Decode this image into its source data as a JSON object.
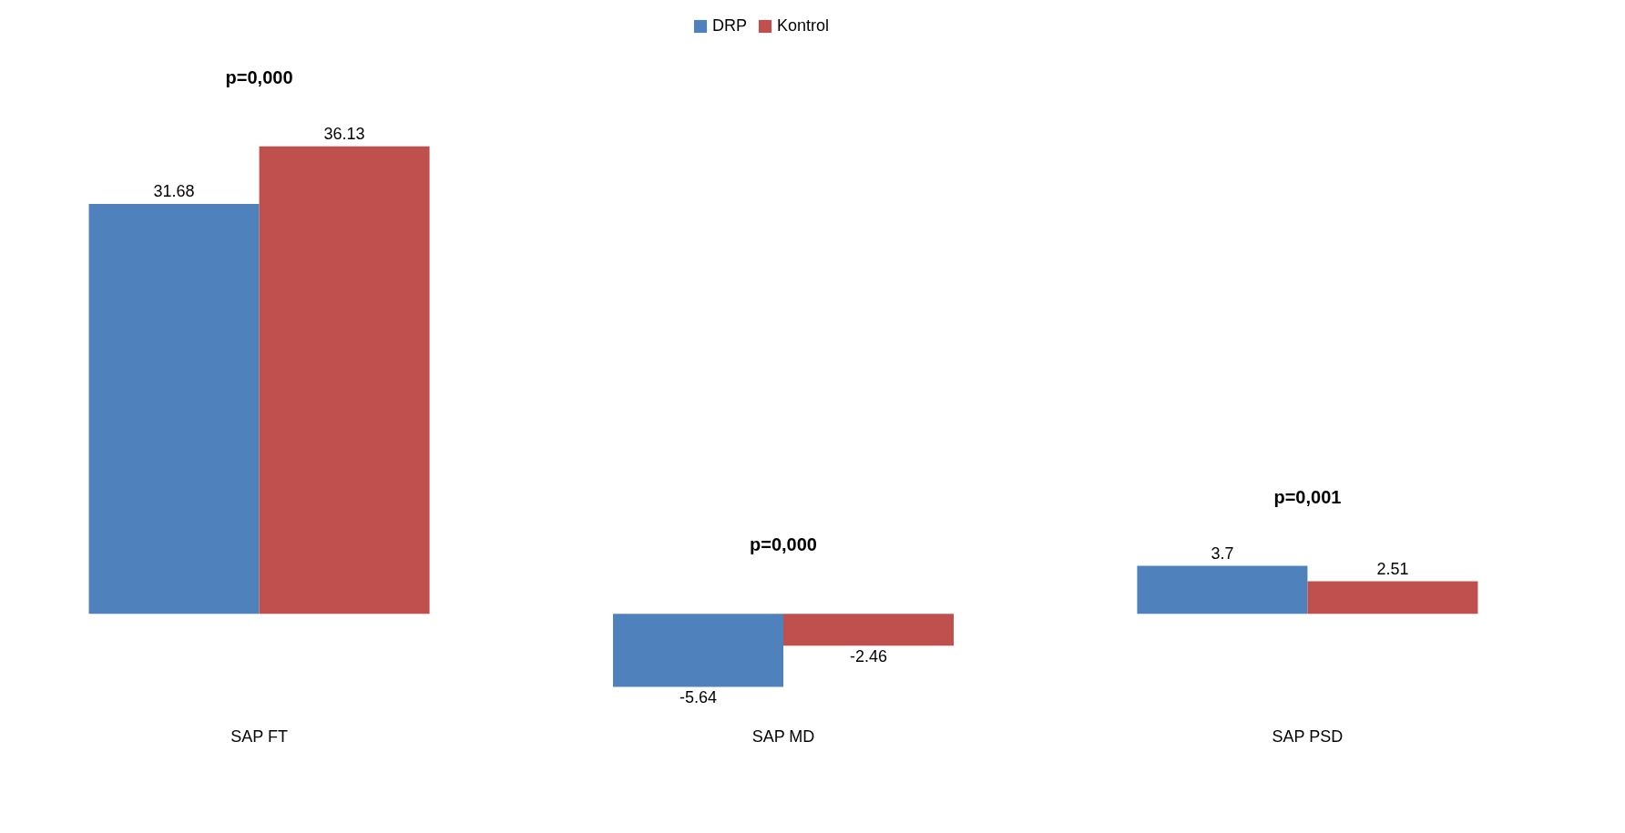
{
  "chart_data": {
    "type": "bar",
    "categories": [
      "SAP FT",
      "SAP MD",
      "SAP PSD"
    ],
    "series": [
      {
        "name": "DRP",
        "color": "#4f81bd",
        "values": [
          31.68,
          -5.64,
          3.7
        ]
      },
      {
        "name": "Kontrol",
        "color": "#c0504d",
        "values": [
          36.13,
          -2.46,
          2.51
        ]
      }
    ],
    "tick_labels": "x",
    "data_labels": true,
    "legend": "top",
    "annotations": [
      "p=0,000",
      "p=0,000",
      "p=0,001"
    ]
  }
}
